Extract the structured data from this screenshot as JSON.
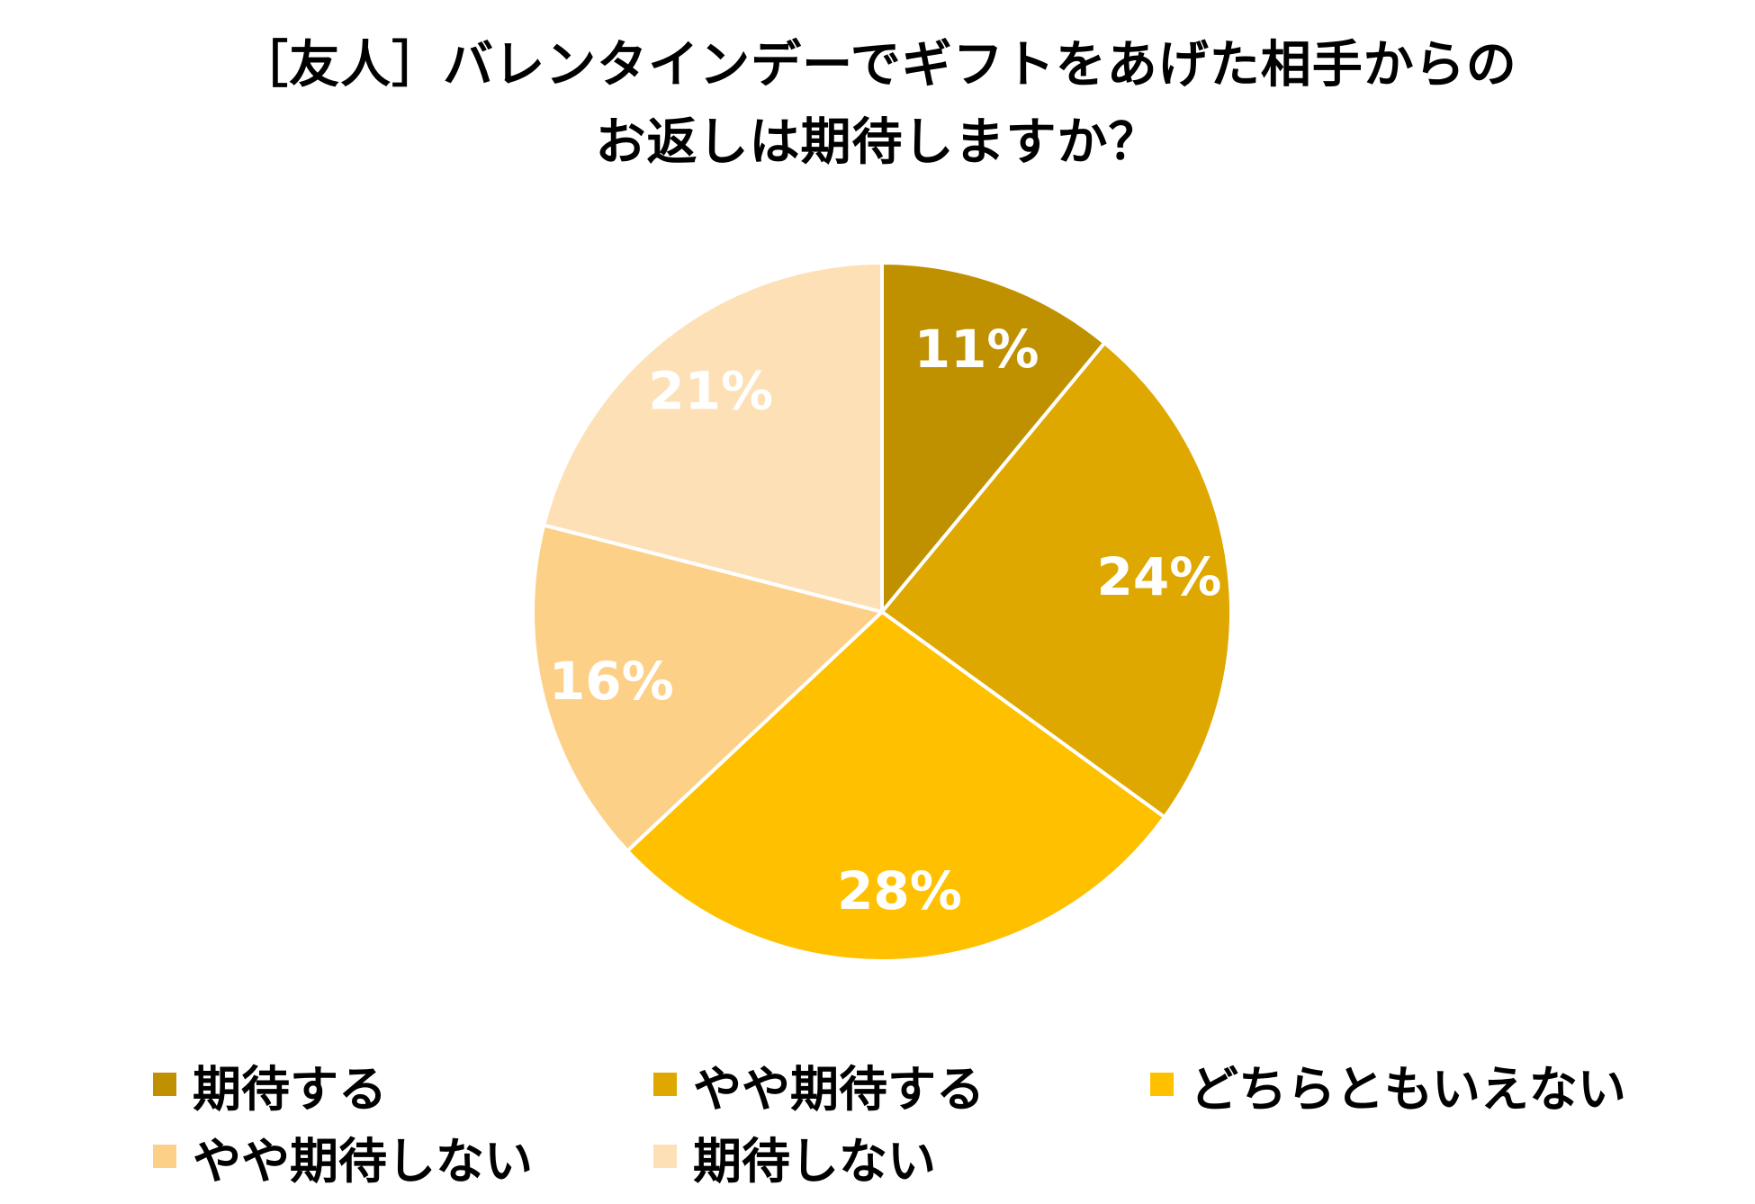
{
  "chart_data": {
    "type": "pie",
    "title": [
      "［友人］バレンタインデーでギフトをあげた相手からの",
      "お返しは期待しますか？"
    ],
    "categories": [
      "期待する",
      "やや期待する",
      "どちらともいえない",
      "やや期待しない",
      "期待しない"
    ],
    "values": [
      11,
      24,
      28,
      16,
      21
    ],
    "value_labels": [
      "11%",
      "24%",
      "28%",
      "16%",
      "21%"
    ],
    "colors": [
      "#BF9000",
      "#DFA800",
      "#FFC000",
      "#FDD088",
      "#FDE0B6"
    ]
  }
}
